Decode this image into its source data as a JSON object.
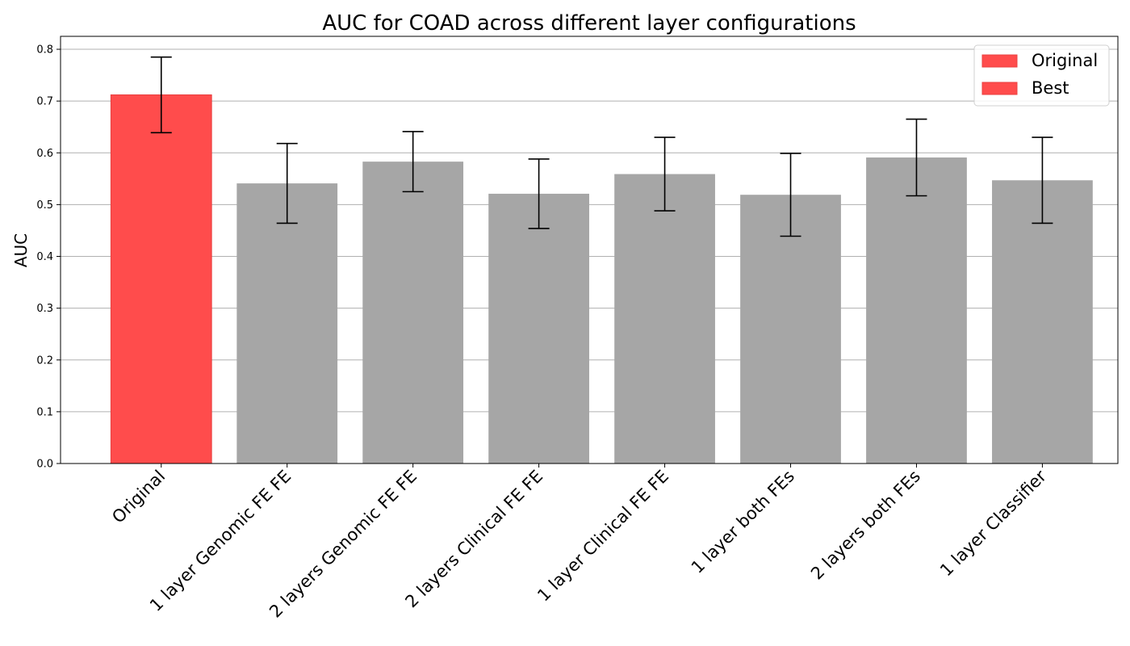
{
  "chart_data": {
    "type": "bar",
    "title": "AUC for COAD across different layer configurations",
    "xlabel": "",
    "ylabel": "AUC",
    "ylim": [
      0,
      0.825
    ],
    "yticks": [
      0.0,
      0.1,
      0.2,
      0.3,
      0.4,
      0.5,
      0.6,
      0.7,
      0.8
    ],
    "ytick_labels": [
      "0.0",
      "0.1",
      "0.2",
      "0.3",
      "0.4",
      "0.5",
      "0.6",
      "0.7",
      "0.8"
    ],
    "grid": "horizontal",
    "legend_position": "top-right",
    "categories": [
      "Original",
      "1 layer Genomic FE FE",
      "2 layers Genomic FE FE",
      "2 layers Clinical FE FE",
      "1 layer Clinical FE FE",
      "1 layer both FEs",
      "2 layers both FEs",
      "1 layer Classifier"
    ],
    "values": [
      0.712,
      0.541,
      0.583,
      0.521,
      0.559,
      0.519,
      0.591,
      0.547
    ],
    "error": [
      0.073,
      0.077,
      0.058,
      0.067,
      0.071,
      0.08,
      0.074,
      0.083
    ],
    "bar_colors": [
      "#ff4c4c",
      "#a6a6a6",
      "#a6a6a6",
      "#a6a6a6",
      "#a6a6a6",
      "#a6a6a6",
      "#a6a6a6",
      "#a6a6a6"
    ],
    "legend": [
      {
        "label": "Original",
        "color": "#ff4c4c"
      },
      {
        "label": "Best",
        "color": "#ff4c4c"
      }
    ]
  }
}
